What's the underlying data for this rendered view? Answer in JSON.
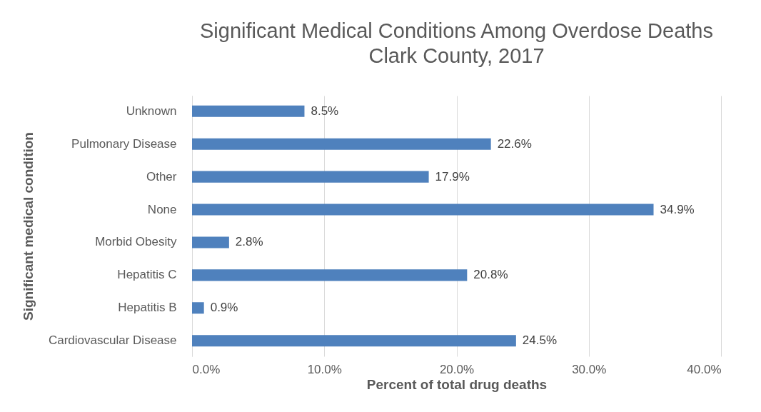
{
  "chart_data": {
    "type": "bar",
    "orientation": "horizontal",
    "title": "Significant Medical Conditions Among Overdose Deaths",
    "subtitle": "Clark County, 2017",
    "xlabel": "Percent of total drug deaths",
    "ylabel": "Significant medical condition",
    "categories": [
      "Unknown",
      "Pulmonary Disease",
      "Other",
      "None",
      "Morbid Obesity",
      "Hepatitis C",
      "Hepatitis B",
      "Cardiovascular Disease"
    ],
    "values": [
      8.5,
      22.6,
      17.9,
      34.9,
      2.8,
      20.8,
      0.9,
      24.5
    ],
    "value_labels": [
      "8.5%",
      "22.6%",
      "17.9%",
      "34.9%",
      "2.8%",
      "20.8%",
      "0.9%",
      "24.5%"
    ],
    "color": "#4f81bd",
    "xlim": [
      0,
      40
    ],
    "xticks": [
      {
        "value": 0,
        "label": "0.0%"
      },
      {
        "value": 10,
        "label": "10.0%"
      },
      {
        "value": 20,
        "label": "20.0%"
      },
      {
        "value": 30,
        "label": "30.0%"
      },
      {
        "value": 40,
        "label": "40.0%"
      }
    ],
    "grid": "x"
  }
}
